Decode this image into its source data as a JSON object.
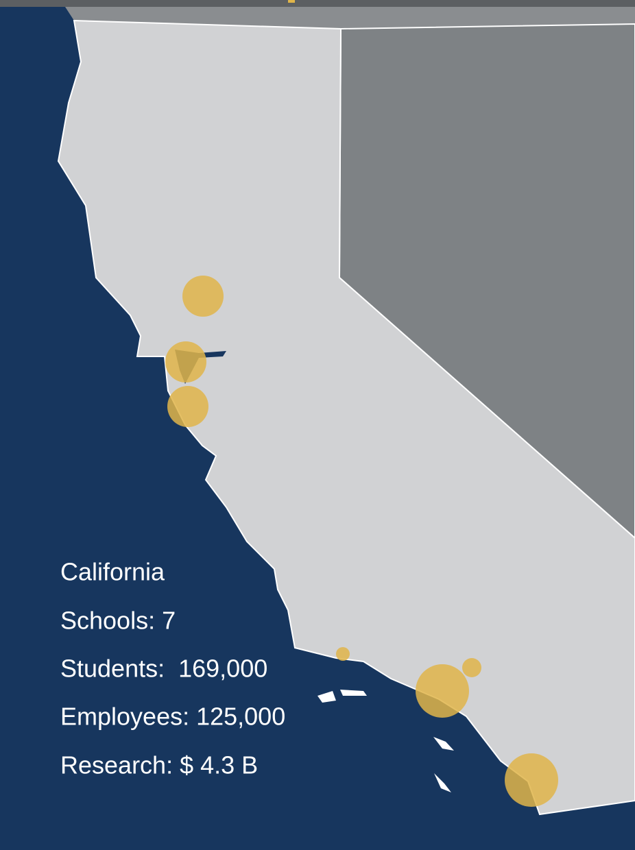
{
  "region": {
    "name": "California",
    "lines": [
      "Schools: 7",
      "Students:  169,000",
      "Employees: 125,000",
      "Research: $ 4.3 B"
    ]
  }
}
